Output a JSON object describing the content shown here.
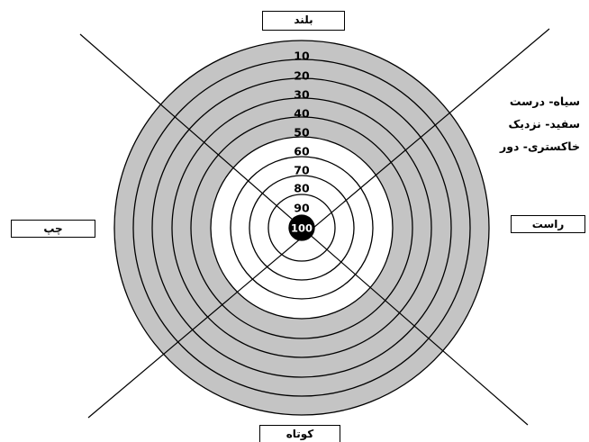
{
  "labels": {
    "top": "بلند",
    "left": "چپ",
    "right": "راست",
    "bottom": "کوتاه"
  },
  "legend": [
    "سیاه- درست",
    "سفید- نزدیک",
    "خاکستری- دور"
  ],
  "rings": [
    {
      "score": "10",
      "color": "#c4c4c4"
    },
    {
      "score": "20",
      "color": "#c4c4c4"
    },
    {
      "score": "30",
      "color": "#c4c4c4"
    },
    {
      "score": "40",
      "color": "#c4c4c4"
    },
    {
      "score": "50",
      "color": "#c4c4c4"
    },
    {
      "score": "60",
      "color": "#ffffff"
    },
    {
      "score": "70",
      "color": "#ffffff"
    },
    {
      "score": "80",
      "color": "#ffffff"
    },
    {
      "score": "90",
      "color": "#ffffff"
    },
    {
      "score": "100",
      "color": "#000000"
    }
  ],
  "colors": {
    "far": "#c4c4c4",
    "near": "#ffffff",
    "exact": "#000000",
    "stroke": "#000000"
  }
}
